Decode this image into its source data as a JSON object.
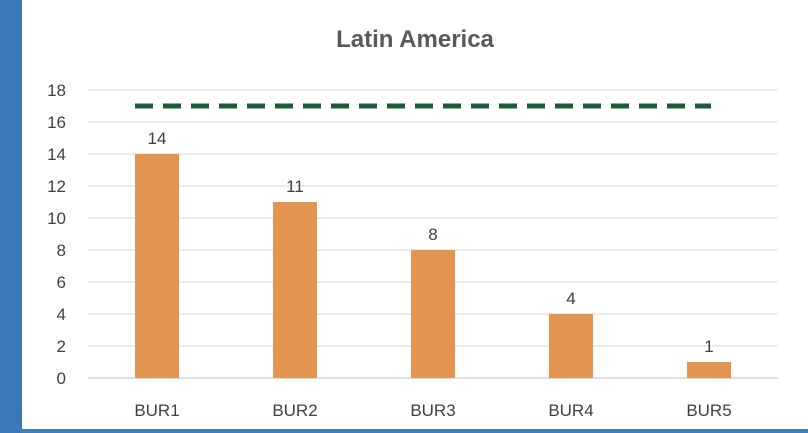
{
  "chart_data": {
    "type": "bar",
    "title": "Latin America",
    "categories": [
      "BUR1",
      "BUR2",
      "BUR3",
      "BUR4",
      "BUR5"
    ],
    "values": [
      14,
      11,
      8,
      4,
      1
    ],
    "ylim": [
      0,
      18
    ],
    "yticks": [
      "0",
      "2",
      "4",
      "6",
      "8",
      "10",
      "12",
      "14",
      "16",
      "18"
    ],
    "reference_line": {
      "value": 17,
      "style": "dashed"
    },
    "grid": true,
    "legend": "none",
    "bar_color": "#e39450",
    "line_color": "#1f5c3a",
    "grid_color": "#d9d9d9"
  }
}
